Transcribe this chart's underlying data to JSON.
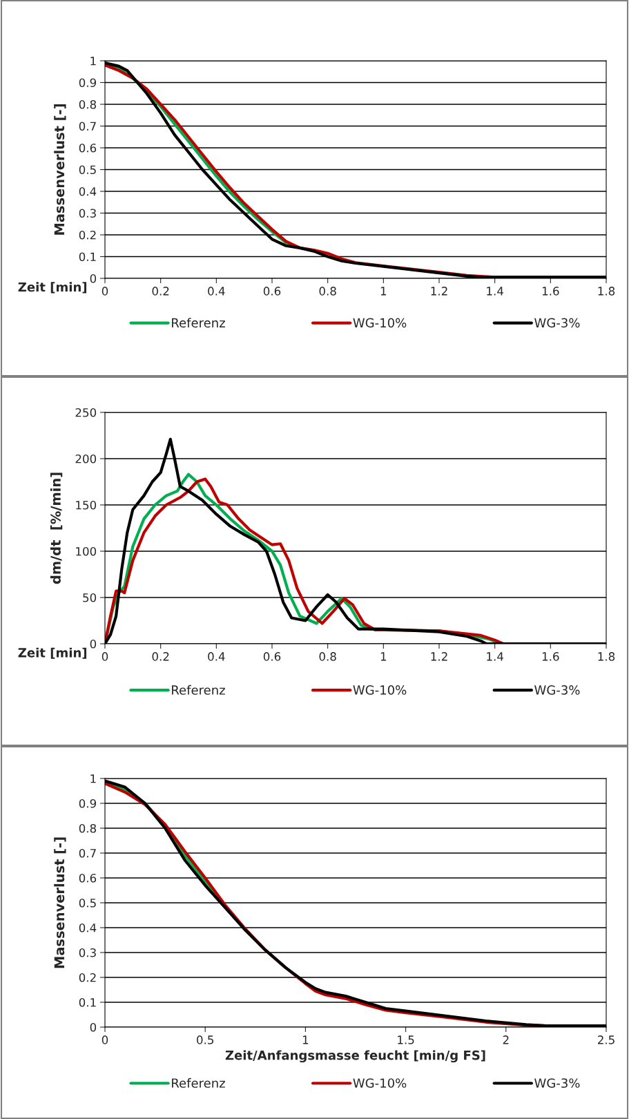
{
  "chart_data": [
    {
      "type": "line",
      "ylabel": "Massenverlust [-]",
      "xlabel": "Zeit [min]",
      "xlim": [
        0,
        1.8
      ],
      "xticks": [
        0,
        0.2,
        0.4,
        0.6,
        0.8,
        1,
        1.2,
        1.4,
        1.6,
        1.8
      ],
      "ylim": [
        0,
        1
      ],
      "yticks": [
        0,
        0.1,
        0.2,
        0.3,
        0.4,
        0.5,
        0.6,
        0.7,
        0.8,
        0.9,
        1
      ],
      "grid": "y",
      "legend": "bottom",
      "marker": "none",
      "line_style": "solid",
      "series": [
        {
          "name": "Referenz",
          "color": "#00b050",
          "x": [
            0,
            0.05,
            0.1,
            0.15,
            0.2,
            0.25,
            0.3,
            0.35,
            0.4,
            0.45,
            0.5,
            0.55,
            0.6,
            0.65,
            0.7
          ],
          "values": [
            0.985,
            0.965,
            0.92,
            0.86,
            0.79,
            0.71,
            0.63,
            0.55,
            0.47,
            0.395,
            0.33,
            0.27,
            0.215,
            0.165,
            0.14
          ]
        },
        {
          "name": "WG-10%",
          "color": "#c00000",
          "x": [
            0,
            0.05,
            0.1,
            0.15,
            0.2,
            0.25,
            0.3,
            0.35,
            0.4,
            0.45,
            0.5,
            0.55,
            0.6,
            0.65,
            0.7,
            0.75,
            0.8,
            0.85,
            0.9,
            1.0,
            1.1,
            1.2,
            1.3,
            1.4,
            1.8
          ],
          "values": [
            0.98,
            0.955,
            0.92,
            0.87,
            0.8,
            0.73,
            0.65,
            0.57,
            0.49,
            0.415,
            0.345,
            0.285,
            0.225,
            0.17,
            0.14,
            0.13,
            0.115,
            0.09,
            0.072,
            0.057,
            0.043,
            0.028,
            0.013,
            0.005,
            0.005
          ]
        },
        {
          "name": "WG-3%",
          "color": "#000000",
          "x": [
            0,
            0.05,
            0.08,
            0.1,
            0.15,
            0.2,
            0.25,
            0.3,
            0.35,
            0.4,
            0.45,
            0.5,
            0.55,
            0.6,
            0.65,
            0.7,
            0.75,
            0.8,
            0.85,
            0.9,
            1.0,
            1.1,
            1.2,
            1.3,
            1.35,
            1.8
          ],
          "values": [
            0.99,
            0.975,
            0.955,
            0.925,
            0.85,
            0.76,
            0.66,
            0.58,
            0.5,
            0.43,
            0.36,
            0.3,
            0.24,
            0.18,
            0.15,
            0.14,
            0.125,
            0.1,
            0.08,
            0.07,
            0.055,
            0.04,
            0.025,
            0.01,
            0.005,
            0.005
          ]
        }
      ]
    },
    {
      "type": "line",
      "ylabel": "dm/dt  [%/min]",
      "xlabel": "Zeit [min]",
      "xlim": [
        0,
        1.8
      ],
      "xticks": [
        0,
        0.2,
        0.4,
        0.6,
        0.8,
        1,
        1.2,
        1.4,
        1.6,
        1.8
      ],
      "ylim": [
        0,
        250
      ],
      "yticks": [
        0,
        50,
        100,
        150,
        200,
        250
      ],
      "grid": "y",
      "legend": "bottom",
      "marker": "none",
      "line_style": "solid",
      "series": [
        {
          "name": "Referenz",
          "color": "#00b050",
          "x": [
            0,
            0.03,
            0.05,
            0.07,
            0.1,
            0.14,
            0.18,
            0.22,
            0.26,
            0.28,
            0.3,
            0.33,
            0.36,
            0.4,
            0.45,
            0.5,
            0.55,
            0.6,
            0.63,
            0.66,
            0.7,
            0.76,
            0.8,
            0.85,
            0.88,
            0.92,
            0.95,
            1.0,
            1.2,
            1.3,
            1.38,
            1.42,
            1.8
          ],
          "values": [
            0,
            40,
            55,
            62,
            105,
            135,
            150,
            160,
            165,
            175,
            183,
            175,
            160,
            150,
            135,
            122,
            112,
            100,
            85,
            55,
            30,
            22,
            35,
            49,
            40,
            20,
            16,
            15,
            14,
            10,
            5,
            0,
            0
          ]
        },
        {
          "name": "WG-10%",
          "color": "#c00000",
          "x": [
            0,
            0.02,
            0.04,
            0.06,
            0.07,
            0.1,
            0.14,
            0.18,
            0.22,
            0.27,
            0.3,
            0.33,
            0.36,
            0.38,
            0.41,
            0.44,
            0.48,
            0.52,
            0.56,
            0.6,
            0.63,
            0.66,
            0.69,
            0.73,
            0.78,
            0.82,
            0.86,
            0.89,
            0.93,
            0.97,
            1.0,
            1.2,
            1.35,
            1.4,
            1.43,
            1.8
          ],
          "values": [
            0,
            30,
            57,
            57,
            55,
            90,
            120,
            138,
            150,
            158,
            165,
            175,
            178,
            170,
            153,
            150,
            135,
            123,
            115,
            107,
            108,
            90,
            60,
            35,
            22,
            35,
            49,
            42,
            22,
            15,
            15,
            14,
            9,
            4,
            0,
            0
          ]
        },
        {
          "name": "WG-3%",
          "color": "#000000",
          "x": [
            0,
            0.02,
            0.04,
            0.06,
            0.08,
            0.1,
            0.14,
            0.17,
            0.2,
            0.22,
            0.235,
            0.25,
            0.27,
            0.3,
            0.35,
            0.4,
            0.45,
            0.5,
            0.55,
            0.58,
            0.61,
            0.64,
            0.67,
            0.72,
            0.76,
            0.8,
            0.83,
            0.87,
            0.91,
            0.95,
            1.0,
            1.2,
            1.3,
            1.35,
            1.37,
            1.8
          ],
          "values": [
            0,
            10,
            30,
            80,
            120,
            145,
            160,
            175,
            185,
            205,
            221,
            200,
            170,
            165,
            155,
            140,
            127,
            118,
            110,
            100,
            75,
            45,
            28,
            25,
            40,
            53,
            45,
            28,
            16,
            16,
            16,
            13,
            8,
            3,
            0,
            0
          ]
        }
      ]
    },
    {
      "type": "line",
      "ylabel": "Massenverlust [-]",
      "xlabel": "Zeit/Anfangsmasse feucht [min/g FS]",
      "xlim": [
        0,
        2.5
      ],
      "xticks": [
        0,
        0.5,
        1,
        1.5,
        2,
        2.5
      ],
      "ylim": [
        0,
        1
      ],
      "yticks": [
        0,
        0.1,
        0.2,
        0.3,
        0.4,
        0.5,
        0.6,
        0.7,
        0.8,
        0.9,
        1
      ],
      "grid": "y",
      "legend": "bottom",
      "marker": "none",
      "line_style": "solid",
      "series": [
        {
          "name": "Referenz",
          "color": "#00b050",
          "x": [
            0,
            0.1,
            0.2,
            0.3,
            0.4,
            0.5,
            0.6
          ],
          "values": [
            0.985,
            0.955,
            0.9,
            0.81,
            0.69,
            0.585,
            0.485
          ]
        },
        {
          "name": "WG-10%",
          "color": "#c00000",
          "x": [
            0,
            0.1,
            0.2,
            0.3,
            0.4,
            0.5,
            0.6,
            0.7,
            0.8,
            0.9,
            1.0,
            1.05,
            1.1,
            1.2,
            1.3,
            1.4,
            1.5,
            1.7,
            1.9,
            2.1,
            2.2,
            2.5
          ],
          "values": [
            0.98,
            0.945,
            0.895,
            0.815,
            0.705,
            0.6,
            0.49,
            0.395,
            0.31,
            0.24,
            0.175,
            0.145,
            0.13,
            0.115,
            0.09,
            0.068,
            0.058,
            0.04,
            0.02,
            0.008,
            0.005,
            0.005
          ]
        },
        {
          "name": "WG-3%",
          "color": "#000000",
          "x": [
            0,
            0.1,
            0.2,
            0.3,
            0.4,
            0.5,
            0.6,
            0.7,
            0.8,
            0.9,
            1.0,
            1.05,
            1.1,
            1.2,
            1.3,
            1.4,
            1.5,
            1.7,
            1.9,
            2.1,
            2.2,
            2.5
          ],
          "values": [
            0.99,
            0.965,
            0.9,
            0.8,
            0.67,
            0.57,
            0.48,
            0.39,
            0.31,
            0.24,
            0.18,
            0.155,
            0.14,
            0.125,
            0.1,
            0.075,
            0.065,
            0.045,
            0.025,
            0.01,
            0.005,
            0.005
          ]
        }
      ]
    }
  ]
}
